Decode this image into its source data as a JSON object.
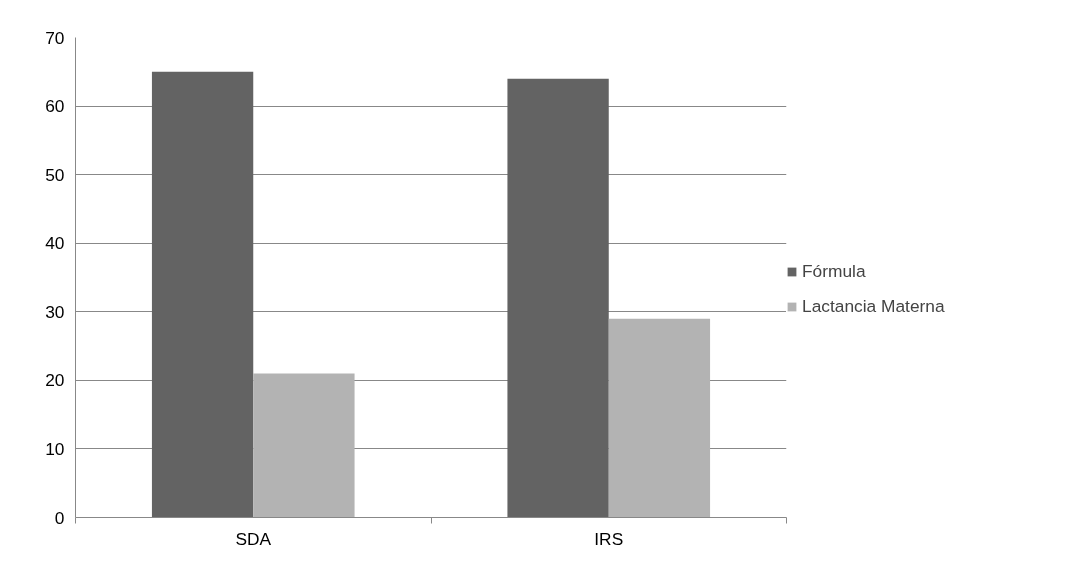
{
  "chart_data": {
    "type": "bar",
    "categories": [
      "SDA",
      "IRS"
    ],
    "series": [
      {
        "name": "Fórmula",
        "color": "#636363",
        "values": [
          65,
          64
        ]
      },
      {
        "name": "Lactancia Materna",
        "color": "#b3b3b3",
        "values": [
          21,
          29
        ]
      }
    ],
    "ylim": [
      0,
      70
    ],
    "yticks": [
      0,
      10,
      20,
      30,
      40,
      50,
      60,
      70
    ],
    "grid": "y",
    "legend": "right"
  }
}
